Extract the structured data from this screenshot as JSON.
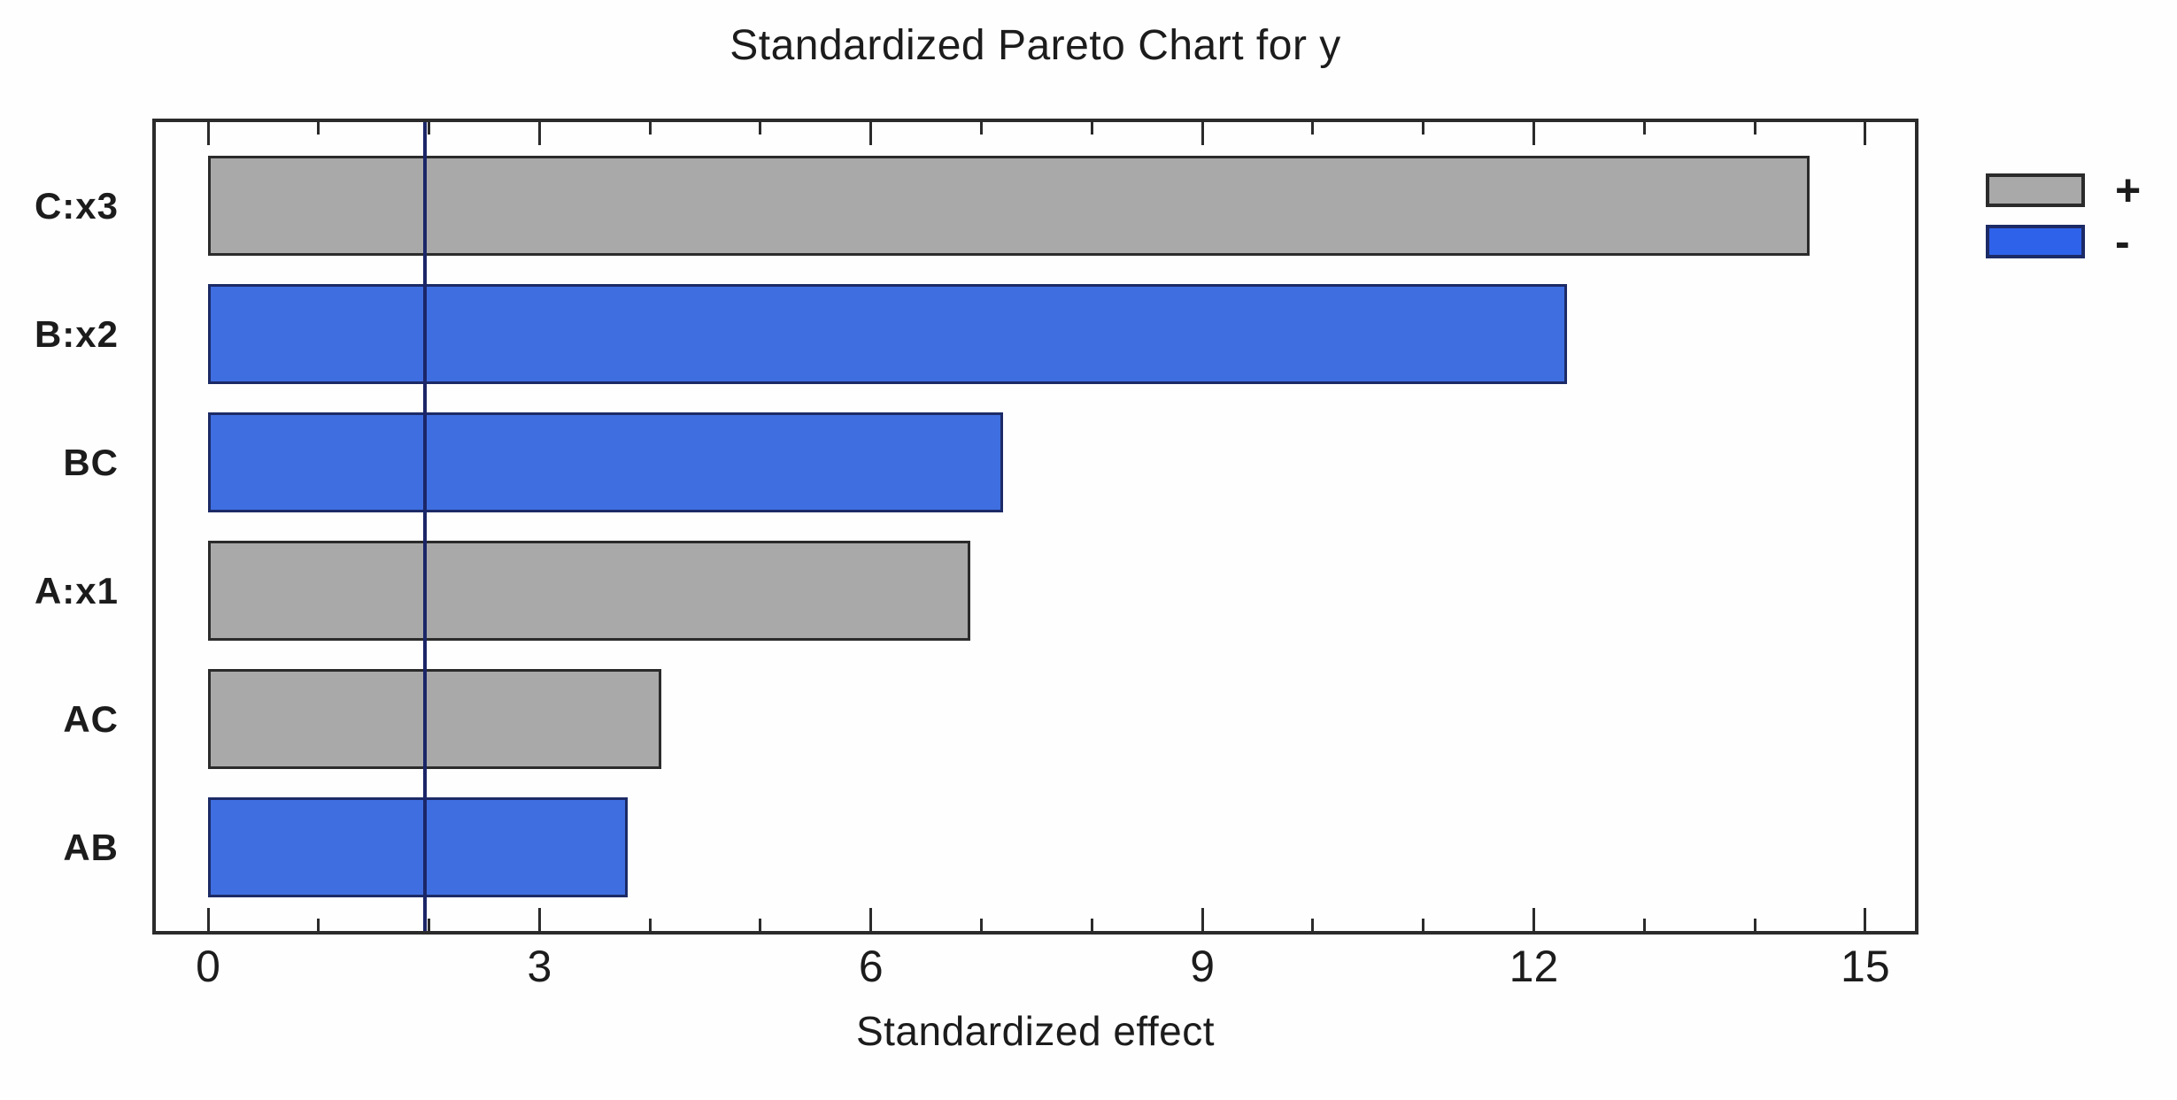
{
  "chart_data": {
    "type": "bar",
    "orientation": "horizontal",
    "title": "Standardized Pareto Chart for y",
    "xlabel": "Standardized effect",
    "categories": [
      "C:x3",
      "B:x2",
      "BC",
      "A:x1",
      "AC",
      "AB"
    ],
    "values": [
      14.5,
      12.3,
      7.2,
      6.9,
      4.1,
      3.8
    ],
    "signs": [
      "+",
      "-",
      "-",
      "+",
      "+",
      "-"
    ],
    "reference_line": 1.96,
    "xlim": [
      0,
      15.45
    ],
    "x_major_ticks": [
      0,
      3,
      6,
      9,
      12,
      15
    ],
    "x_minor_tick_step": 1,
    "grid": false,
    "legend_position": "right",
    "legend": [
      {
        "label": "+",
        "color": "#a9a9a9"
      },
      {
        "label": "-",
        "color": "#2f62ea"
      }
    ],
    "colors": {
      "positive_fill": "#a9a9a9",
      "positive_border": "#2b2b2b",
      "negative_fill": "#3f6ee0",
      "negative_border": "#1c2a66",
      "reference_line": "#1b2668",
      "axis": "#2b2b2b",
      "text": "#1c1c1c"
    }
  }
}
